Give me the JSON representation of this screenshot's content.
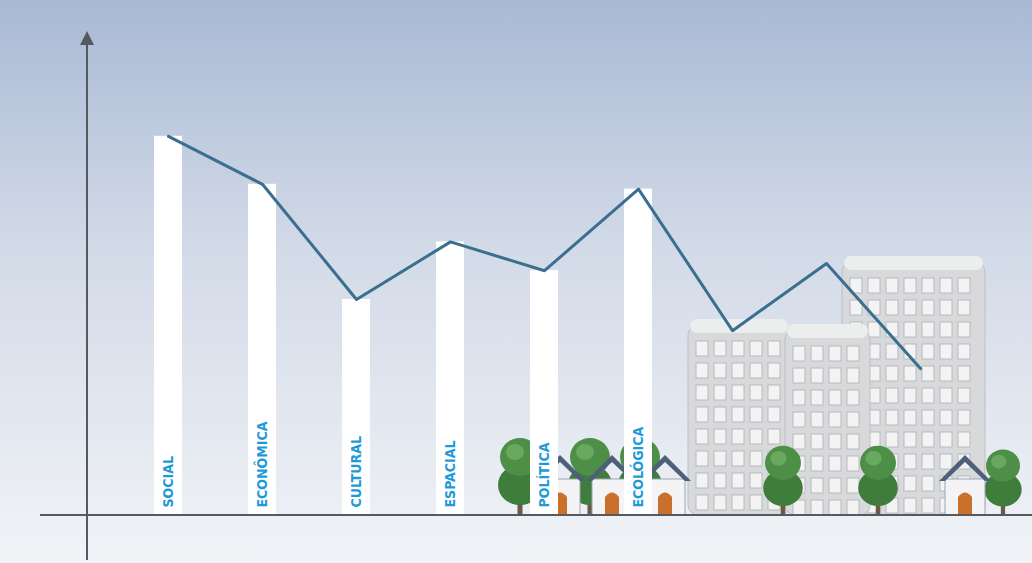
{
  "chart_data": {
    "type": "bar",
    "categories": [
      "SOCIAL",
      "ECONÔMICA",
      "CULTURAL",
      "ESPACIAL",
      "POLÍTICA",
      "ECOLÓGICA",
      null,
      null,
      null
    ],
    "series": [
      {
        "type": "bar",
        "color": "#ffffff",
        "values": [
          79,
          69,
          45,
          57,
          51,
          68,
          null,
          null,
          null
        ]
      },
      {
        "type": "line",
        "color": "#3a6f8f",
        "values": [
          79,
          69,
          45,
          57,
          51,
          68,
          38.5,
          52.5,
          30.6
        ]
      }
    ],
    "ylim": [
      0,
      100
    ],
    "yticks": [],
    "grid": false,
    "tick_labels": "x"
  }
}
